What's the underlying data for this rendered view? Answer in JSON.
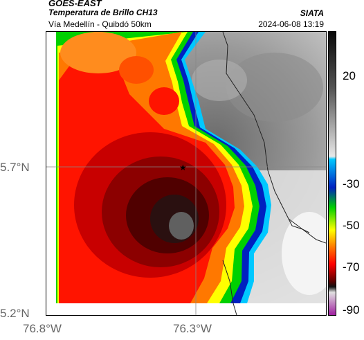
{
  "header": {
    "agency": "GOES-EAST",
    "product": "Temperatura de Brillo CH13",
    "region": "Vía Medellín - Quibdó 50km",
    "source": "SIATA",
    "datetime": "2024-06-08 13:19"
  },
  "map": {
    "lat_labels": [
      "5.7°N",
      "5.2°N"
    ],
    "lon_labels": [
      "76.8°W",
      "76.3°W"
    ]
  },
  "colorbar": {
    "ticks": [
      "20",
      "-30",
      "-50",
      "-70",
      "-90"
    ],
    "colors": {
      "warm_top": "#0a0a0a",
      "gray_mid": "#9a9a9a",
      "gray_light": "#e8e8e8",
      "cyan": "#00c8ff",
      "blue": "#0020c0",
      "green": "#00d000",
      "yellow": "#ffff00",
      "orange": "#ff7800",
      "red": "#ff0000",
      "dark_red": "#600000",
      "black": "#101010",
      "magenta": "#a020a0"
    }
  }
}
